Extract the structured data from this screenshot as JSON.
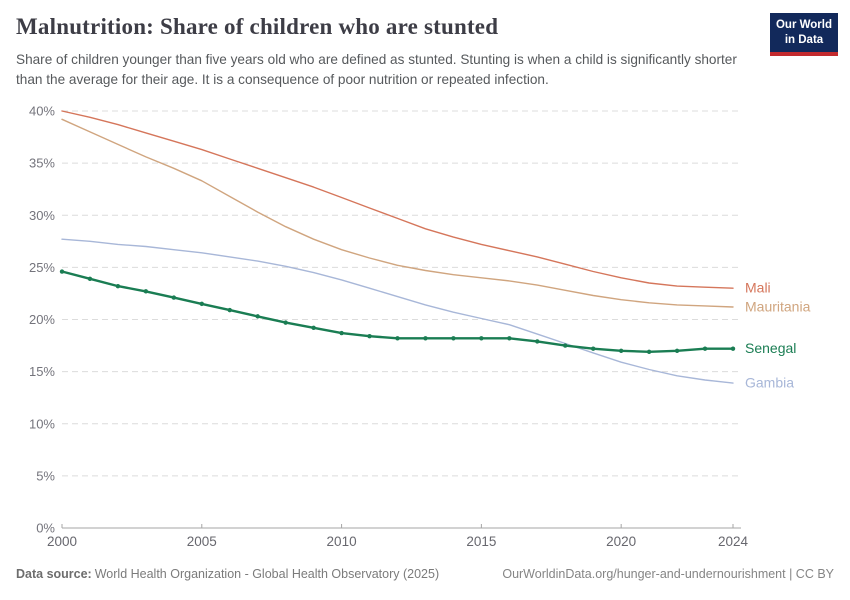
{
  "header": {
    "title": "Malnutrition: Share of children who are stunted",
    "subtitle": "Share of children younger than five years old who are defined as stunted. Stunting is when a child is significantly shorter than the average for their age. It is a consequence of poor nutrition or repeated infection.",
    "logo": {
      "line1": "Our World",
      "line2": "in Data",
      "bg_color": "#12295b",
      "stripe_color": "#c32a2e"
    }
  },
  "chart_data": {
    "type": "line",
    "title": "Malnutrition: Share of children who are stunted",
    "xlabel": "",
    "ylabel": "",
    "x": [
      2000,
      2001,
      2002,
      2003,
      2004,
      2005,
      2006,
      2007,
      2008,
      2009,
      2010,
      2011,
      2012,
      2013,
      2014,
      2015,
      2016,
      2017,
      2018,
      2019,
      2020,
      2021,
      2022,
      2023,
      2024
    ],
    "series": [
      {
        "name": "Mali",
        "color": "#d5765b",
        "emphasis": false,
        "markers": false,
        "values": [
          40.0,
          39.4,
          38.7,
          37.9,
          37.1,
          36.3,
          35.4,
          34.5,
          33.6,
          32.7,
          31.7,
          30.7,
          29.7,
          28.7,
          27.9,
          27.2,
          26.6,
          26.0,
          25.3,
          24.6,
          24.0,
          23.5,
          23.2,
          23.1,
          23.0
        ]
      },
      {
        "name": "Mauritania",
        "color": "#d0a57f",
        "emphasis": false,
        "markers": false,
        "values": [
          39.2,
          38.0,
          36.8,
          35.6,
          34.5,
          33.3,
          31.8,
          30.3,
          28.9,
          27.7,
          26.7,
          25.9,
          25.2,
          24.7,
          24.3,
          24.0,
          23.7,
          23.3,
          22.8,
          22.3,
          21.9,
          21.6,
          21.4,
          21.3,
          21.2
        ]
      },
      {
        "name": "Gambia",
        "color": "#a8b7d8",
        "emphasis": false,
        "markers": false,
        "values": [
          27.7,
          27.5,
          27.2,
          27.0,
          26.7,
          26.4,
          26.0,
          25.6,
          25.1,
          24.5,
          23.8,
          23.0,
          22.2,
          21.4,
          20.7,
          20.1,
          19.5,
          18.6,
          17.7,
          16.8,
          15.9,
          15.2,
          14.6,
          14.2,
          13.9
        ]
      },
      {
        "name": "Senegal",
        "color": "#1a7d53",
        "emphasis": true,
        "markers": true,
        "values": [
          24.6,
          23.9,
          23.2,
          22.7,
          22.1,
          21.5,
          20.9,
          20.3,
          19.7,
          19.2,
          18.7,
          18.4,
          18.2,
          18.2,
          18.2,
          18.2,
          18.2,
          17.9,
          17.5,
          17.2,
          17.0,
          16.9,
          17.0,
          17.2,
          17.2
        ]
      }
    ],
    "ylim": [
      0,
      40
    ],
    "yticks": [
      0,
      5,
      10,
      15,
      20,
      25,
      30,
      35,
      40
    ],
    "ytick_suffix": "%",
    "xticks": [
      2000,
      2005,
      2010,
      2015,
      2020,
      2024
    ],
    "grid": "horizontal-dashed",
    "legend_position": "right-edge-labels"
  },
  "footer": {
    "source_label": "Data source:",
    "source_text": "World Health Organization - Global Health Observatory (2025)",
    "attribution": "OurWorldinData.org/hunger-and-undernourishment | CC BY"
  }
}
